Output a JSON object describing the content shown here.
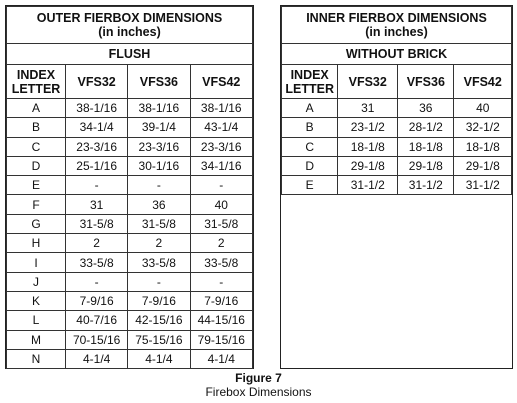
{
  "outer_table": {
    "title": "OUTER FIERBOX DIMENSIONS",
    "subtitle": "(in inches)",
    "section": "FLUSH",
    "columns": [
      "INDEX LETTER",
      "VFS32",
      "VFS36",
      "VFS42"
    ],
    "rows": [
      [
        "A",
        "38-1/16",
        "38-1/16",
        "38-1/16"
      ],
      [
        "B",
        "34-1/4",
        "39-1/4",
        "43-1/4"
      ],
      [
        "C",
        "23-3/16",
        "23-3/16",
        "23-3/16"
      ],
      [
        "D",
        "25-1/16",
        "30-1/16",
        "34-1/16"
      ],
      [
        "E",
        "-",
        "-",
        "-"
      ],
      [
        "F",
        "31",
        "36",
        "40"
      ],
      [
        "G",
        "31-5/8",
        "31-5/8",
        "31-5/8"
      ],
      [
        "H",
        "2",
        "2",
        "2"
      ],
      [
        "I",
        "33-5/8",
        "33-5/8",
        "33-5/8"
      ],
      [
        "J",
        "-",
        "-",
        "-"
      ],
      [
        "K",
        "7-9/16",
        "7-9/16",
        "7-9/16"
      ],
      [
        "L",
        "40-7/16",
        "42-15/16",
        "44-15/16"
      ],
      [
        "M",
        "70-15/16",
        "75-15/16",
        "79-15/16"
      ],
      [
        "N",
        "4-1/4",
        "4-1/4",
        "4-1/4"
      ]
    ]
  },
  "inner_table": {
    "title": "INNER FIERBOX DIMENSIONS",
    "subtitle": "(in inches)",
    "section": "WITHOUT BRICK",
    "columns": [
      "INDEX LETTER",
      "VFS32",
      "VFS36",
      "VFS42"
    ],
    "rows": [
      [
        "A",
        "31",
        "36",
        "40"
      ],
      [
        "B",
        "23-1/2",
        "28-1/2",
        "32-1/2"
      ],
      [
        "C",
        "18-1/8",
        "18-1/8",
        "18-1/8"
      ],
      [
        "D",
        "29-1/8",
        "29-1/8",
        "29-1/8"
      ],
      [
        "E",
        "31-1/2",
        "31-1/2",
        "31-1/2"
      ]
    ]
  },
  "caption": {
    "figure": "Figure 7",
    "text": "Firebox Dimensions"
  }
}
